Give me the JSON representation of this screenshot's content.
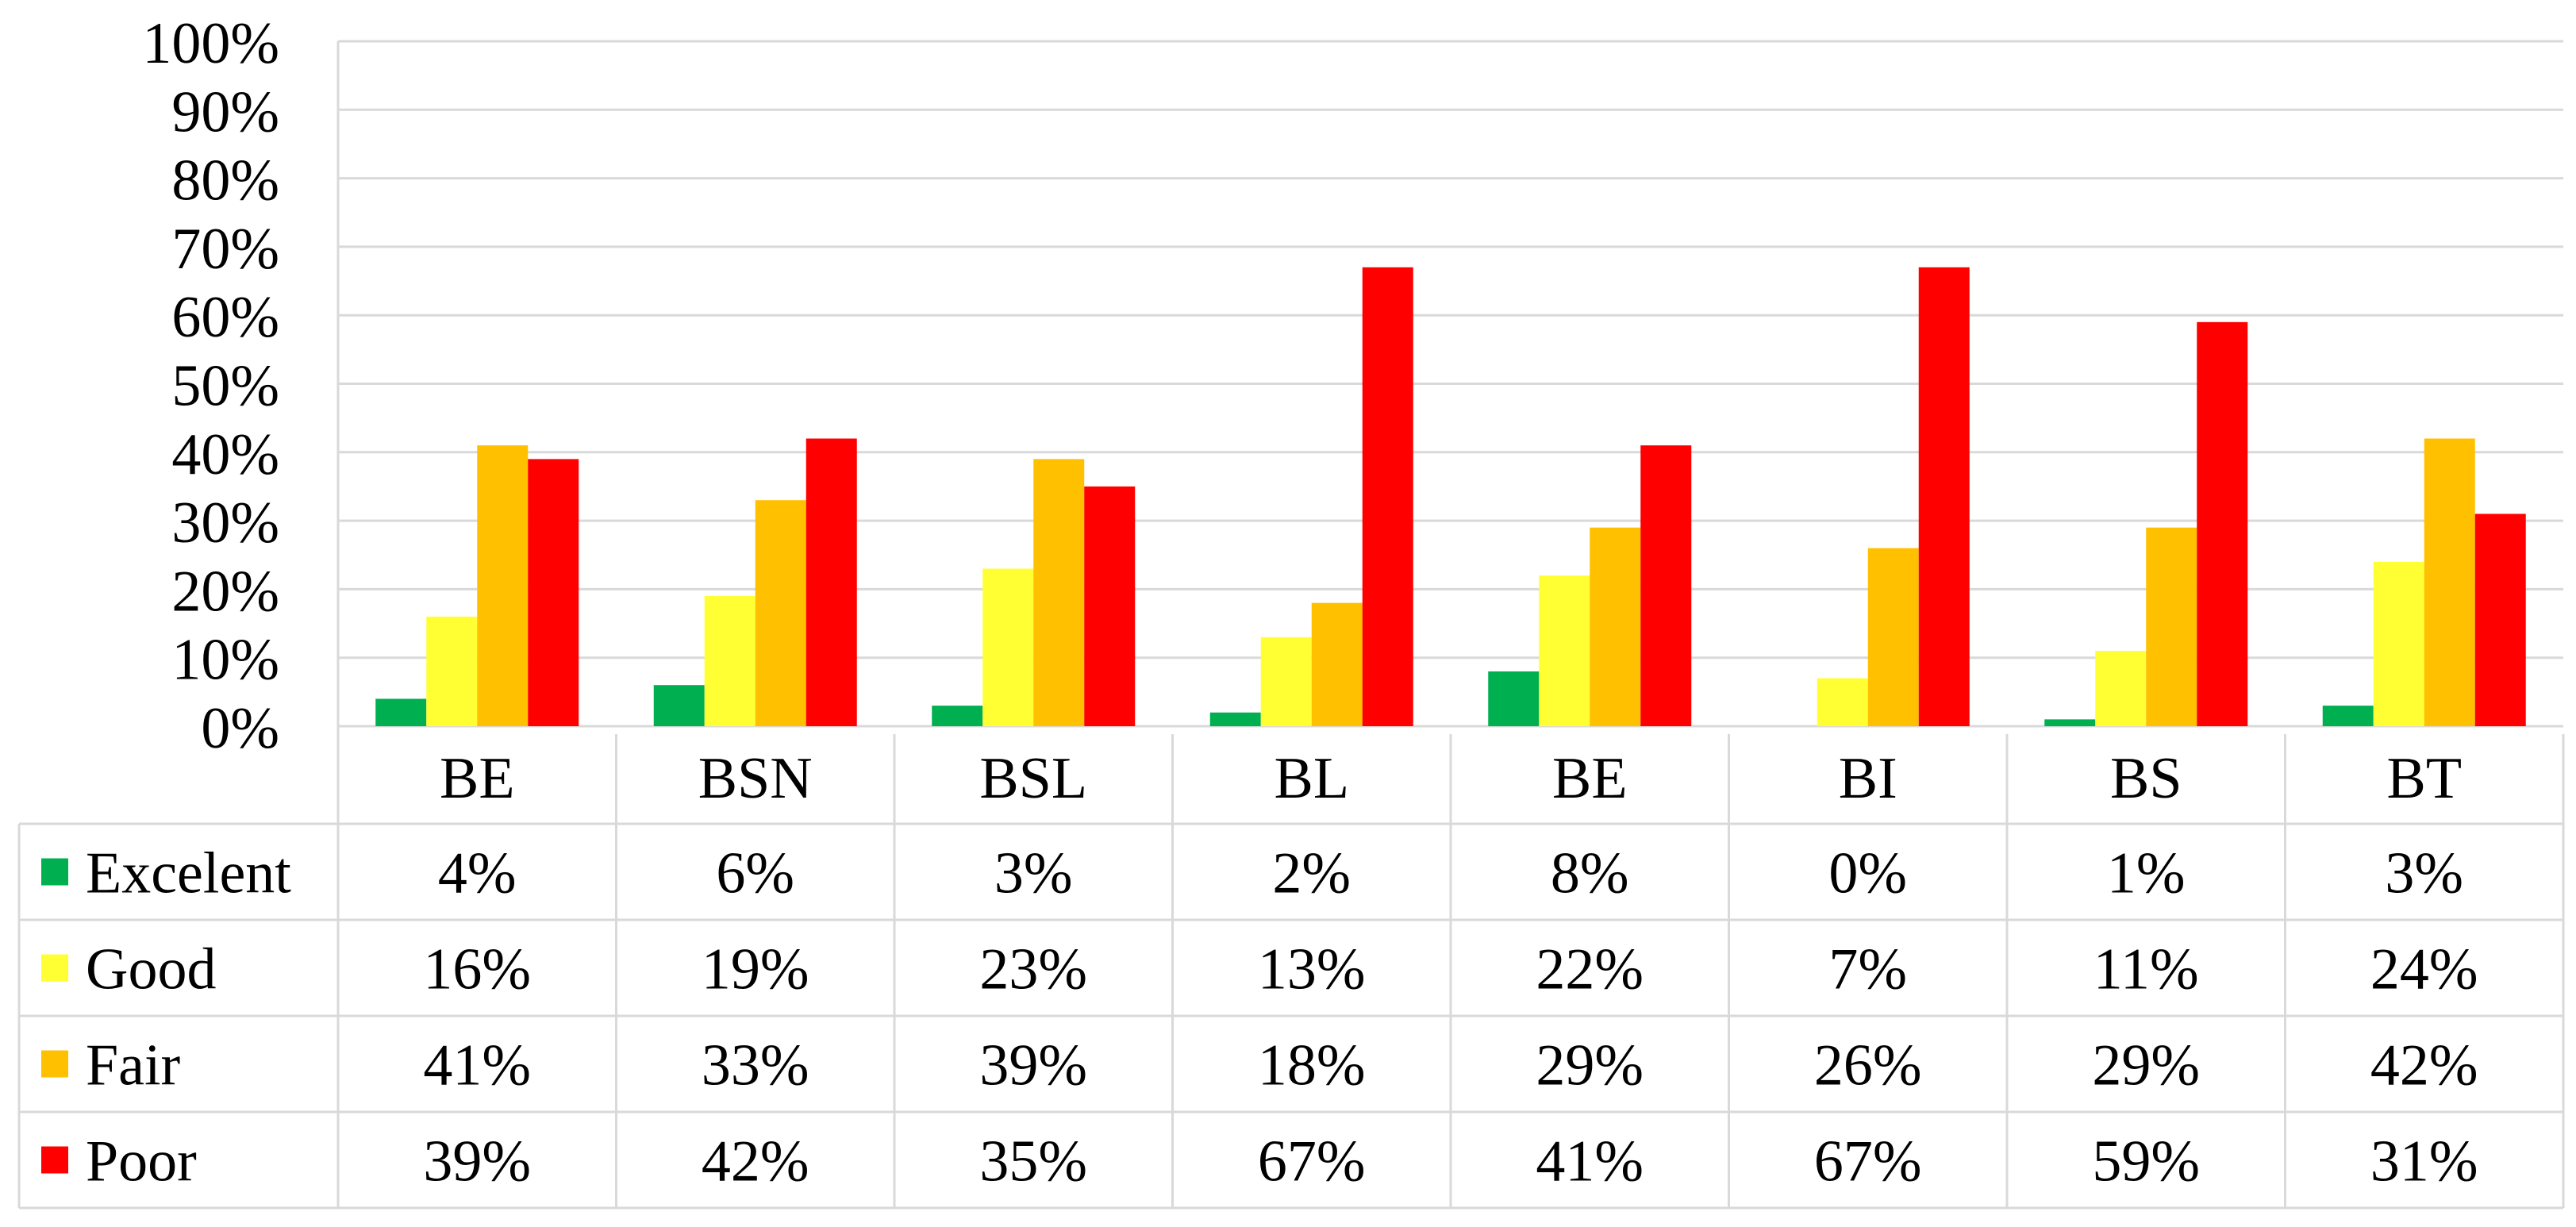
{
  "chart_data": {
    "type": "bar",
    "title": "",
    "xlabel": "",
    "ylabel": "",
    "ylim": [
      0,
      100
    ],
    "y_ticks": [
      "0%",
      "10%",
      "20%",
      "30%",
      "40%",
      "50%",
      "60%",
      "70%",
      "80%",
      "90%",
      "100%"
    ],
    "grid": true,
    "legend": "data-table-left",
    "categories": [
      "BE",
      "BSN",
      "BSL",
      "BL",
      "BE",
      "BI",
      "BS",
      "BT"
    ],
    "series": [
      {
        "name": "Excelent",
        "color": "#00b050",
        "values": [
          4,
          6,
          3,
          2,
          8,
          0,
          1,
          3
        ],
        "labels": [
          "4%",
          "6%",
          "3%",
          "2%",
          "8%",
          "0%",
          "1%",
          "3%"
        ]
      },
      {
        "name": "Good",
        "color": "#ffff33",
        "values": [
          16,
          19,
          23,
          13,
          22,
          7,
          11,
          24
        ],
        "labels": [
          "16%",
          "19%",
          "23%",
          "13%",
          "22%",
          "7%",
          "11%",
          "24%"
        ]
      },
      {
        "name": "Fair",
        "color": "#ffc000",
        "values": [
          41,
          33,
          39,
          18,
          29,
          26,
          29,
          42
        ],
        "labels": [
          "41%",
          "33%",
          "39%",
          "18%",
          "29%",
          "26%",
          "29%",
          "42%"
        ]
      },
      {
        "name": "Poor",
        "color": "#ff0000",
        "values": [
          39,
          42,
          35,
          67,
          41,
          67,
          59,
          31
        ],
        "labels": [
          "39%",
          "42%",
          "35%",
          "67%",
          "41%",
          "67%",
          "59%",
          "31%"
        ]
      }
    ]
  }
}
